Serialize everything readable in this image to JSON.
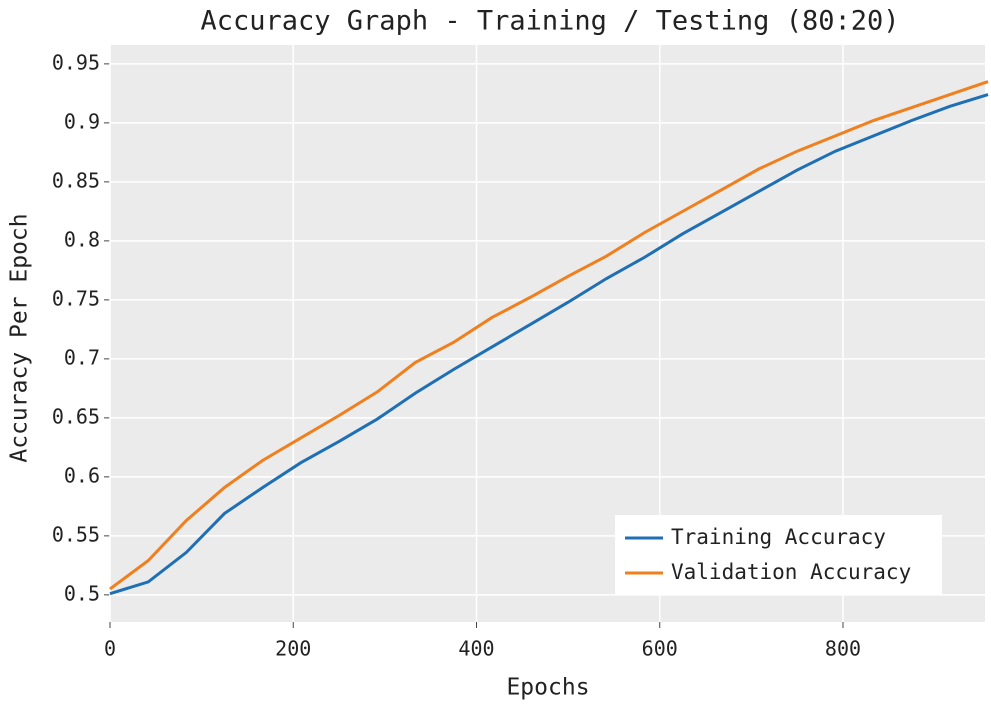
{
  "chart_data": {
    "type": "line",
    "title": "Accuracy Graph - Training / Testing (80:20)",
    "x_label": "Epochs",
    "y_label": "Accuracy Per Epoch",
    "x": [
      0,
      41.7,
      83.3,
      125,
      166.7,
      208.3,
      250,
      291.7,
      333.3,
      375,
      416.7,
      458.3,
      500,
      541.7,
      583.3,
      625,
      666.7,
      708.3,
      750,
      791.7,
      833.3,
      875,
      916.7,
      958.3
    ],
    "series": [
      {
        "name": "Training Accuracy",
        "color": "#1f6fb4",
        "values": [
          0.501,
          0.511,
          0.536,
          0.569,
          0.591,
          0.612,
          0.63,
          0.649,
          0.671,
          0.691,
          0.71,
          0.729,
          0.748,
          0.768,
          0.786,
          0.806,
          0.824,
          0.842,
          0.86,
          0.876,
          0.889,
          0.902,
          0.914,
          0.924
        ]
      },
      {
        "name": "Validation Accuracy",
        "color": "#f07f1e",
        "values": [
          0.505,
          0.529,
          0.563,
          0.591,
          0.614,
          0.633,
          0.652,
          0.672,
          0.697,
          0.714,
          0.735,
          0.752,
          0.77,
          0.787,
          0.807,
          0.825,
          0.843,
          0.861,
          0.876,
          0.889,
          0.902,
          0.913,
          0.924,
          0.935
        ]
      }
    ],
    "xlim": [
      0,
      955
    ],
    "xticks": [
      0,
      200,
      400,
      600,
      800
    ],
    "ylim": [
      0.477,
      0.966
    ],
    "yticks": [
      0.5,
      0.55,
      0.6,
      0.65,
      0.7,
      0.75,
      0.8,
      0.85,
      0.9,
      0.95
    ],
    "grid": true,
    "legend": "lower right"
  }
}
